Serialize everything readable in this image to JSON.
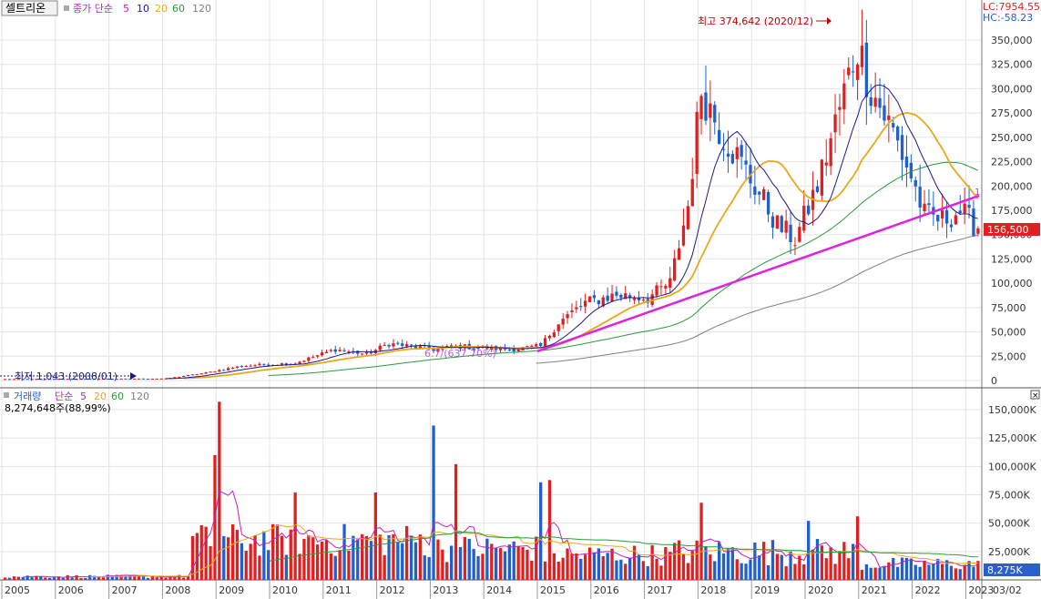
{
  "price_panel": {
    "stock_name": "셀트리온",
    "legend_prefix": "종가 단순",
    "ma_labels": [
      "5",
      "10",
      "20",
      "60",
      "120"
    ],
    "lc_label": "LC:7954.55",
    "hc_label": "HC:-58.23",
    "high_annotation": "최고 374,642 (2020/12)",
    "low_annotation": "최저 1,043 (2008/01)",
    "trend_label": "1",
    "trend_start_label": "6.7/(637.70%)",
    "current_price": "156,500",
    "y_ticks": [
      "350,000",
      "325,000",
      "300,000",
      "275,000",
      "250,000",
      "225,000",
      "200,000",
      "175,000",
      "150,000",
      "125,000",
      "100,000",
      "75,000",
      "50,000",
      "25,000",
      "0"
    ]
  },
  "volume_panel": {
    "legend_prefix": "거래량",
    "legend_simple": "단순",
    "ma_labels": [
      "5",
      "20",
      "60",
      "120"
    ],
    "value_label": "8,274,648주(88,99%)",
    "current_volume": "8,275K",
    "y_ticks": [
      "150,000K",
      "125,000K",
      "100,000K",
      "75,000K",
      "50,000K",
      "25,000K"
    ],
    "close_icon": "×"
  },
  "x_axis": {
    "labels": [
      "2005",
      "2006",
      "2007",
      "2008",
      "2009",
      "2010",
      "2011",
      "2012",
      "2013",
      "2014",
      "2015",
      "2016",
      "2017",
      "2018",
      "2019",
      "2020",
      "2021",
      "2022",
      "2023",
      "03/02"
    ]
  },
  "colors": {
    "up": "#e02020",
    "down": "#1f5fd0",
    "ma5": "#1a1a8a",
    "ma20": "#e8a81a",
    "ma60": "#2a9a3a",
    "ma120": "#808080",
    "trendline": "#e020e0",
    "price_tag": "#e02020",
    "volume_tag": "#2a5fd0"
  },
  "chart_data": [
    {
      "type": "candlestick",
      "title": "셀트리온",
      "frequency": "monthly",
      "x_range": [
        "2005-01",
        "2023-03"
      ],
      "ylim": [
        0,
        375000
      ],
      "moving_averages": [
        "5",
        "10",
        "20",
        "60",
        "120"
      ],
      "highest": {
        "value": 374642,
        "date": "2020-12"
      },
      "lowest": {
        "value": 1043,
        "date": "2008-01"
      },
      "last_close": 156500,
      "close_anchor_points": [
        {
          "date": "2005-01",
          "value": 1500
        },
        {
          "date": "2008-01",
          "value": 2000
        },
        {
          "date": "2008-10",
          "value": 8000
        },
        {
          "date": "2009-06",
          "value": 15000
        },
        {
          "date": "2010-06",
          "value": 18000
        },
        {
          "date": "2011-03",
          "value": 32000
        },
        {
          "date": "2011-10",
          "value": 27000
        },
        {
          "date": "2012-03",
          "value": 38000
        },
        {
          "date": "2013-01",
          "value": 32000
        },
        {
          "date": "2013-07",
          "value": 35000
        },
        {
          "date": "2014-06",
          "value": 32000
        },
        {
          "date": "2015-01",
          "value": 35000
        },
        {
          "date": "2015-05",
          "value": 60000
        },
        {
          "date": "2015-11",
          "value": 80000
        },
        {
          "date": "2016-06",
          "value": 88000
        },
        {
          "date": "2017-01",
          "value": 85000
        },
        {
          "date": "2017-06",
          "value": 100000
        },
        {
          "date": "2017-10",
          "value": 180000
        },
        {
          "date": "2018-01",
          "value": 300000
        },
        {
          "date": "2018-05",
          "value": 260000
        },
        {
          "date": "2018-09",
          "value": 230000
        },
        {
          "date": "2019-01",
          "value": 200000
        },
        {
          "date": "2019-06",
          "value": 160000
        },
        {
          "date": "2019-10",
          "value": 145000
        },
        {
          "date": "2020-03",
          "value": 200000
        },
        {
          "date": "2020-08",
          "value": 280000
        },
        {
          "date": "2020-12",
          "value": 345000
        },
        {
          "date": "2021-03",
          "value": 300000
        },
        {
          "date": "2021-08",
          "value": 255000
        },
        {
          "date": "2021-12",
          "value": 210000
        },
        {
          "date": "2022-03",
          "value": 170000
        },
        {
          "date": "2022-07",
          "value": 165000
        },
        {
          "date": "2022-11",
          "value": 175000
        },
        {
          "date": "2023-02",
          "value": 160000
        },
        {
          "date": "2023-03",
          "value": 156500
        }
      ],
      "trendline": [
        {
          "date": "2015-01",
          "value": 30000
        },
        {
          "date": "2023-04",
          "value": 190000
        }
      ]
    },
    {
      "type": "bar",
      "title": "거래량",
      "unit": "K",
      "ylim": [
        0,
        160000
      ],
      "moving_averages": [
        "5",
        "20",
        "60",
        "120"
      ],
      "last_value_label": "8,275K",
      "peak_points": [
        {
          "date": "2008-12",
          "value": 110000
        },
        {
          "date": "2009-01",
          "value": 157000
        },
        {
          "date": "2010-06",
          "value": 77000
        },
        {
          "date": "2011-12",
          "value": 77000
        },
        {
          "date": "2013-01",
          "value": 136000
        },
        {
          "date": "2013-06",
          "value": 102000
        },
        {
          "date": "2015-01",
          "value": 86000
        },
        {
          "date": "2015-03",
          "value": 88000
        },
        {
          "date": "2018-01",
          "value": 68000
        },
        {
          "date": "2020-01",
          "value": 52000
        },
        {
          "date": "2020-12",
          "value": 56000
        }
      ]
    }
  ]
}
